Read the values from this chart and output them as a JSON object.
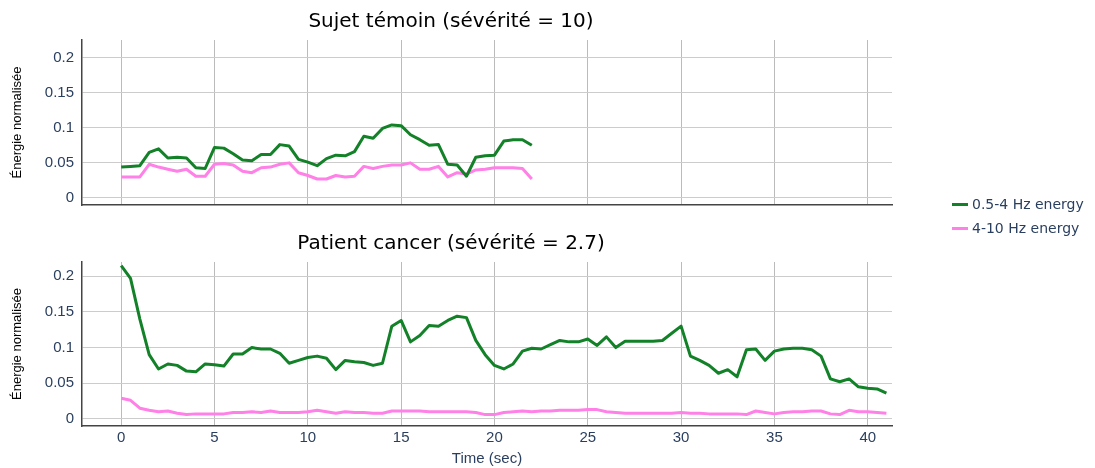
{
  "chart_data": [
    {
      "type": "line",
      "title": "Sujet témoin (sévérité = 10)",
      "ylabel": "Énergie normalisée",
      "xlim": [
        -2.1,
        41.3
      ],
      "xticks": [
        0,
        5,
        10,
        15,
        20,
        25,
        30,
        35,
        40
      ],
      "ylim": [
        -0.01,
        0.225
      ],
      "yticks": [
        0,
        0.05,
        0.1,
        0.15,
        0.2
      ],
      "grid": true,
      "legend": "right",
      "tick_labels": "y",
      "marker": "none",
      "line_style": "solid",
      "x": [
        0,
        0.5,
        1,
        1.5,
        2,
        2.5,
        3,
        3.5,
        4,
        4.5,
        5,
        5.5,
        6,
        6.5,
        7,
        7.5,
        8,
        8.5,
        9,
        9.5,
        10,
        10.5,
        11,
        11.5,
        12,
        12.5,
        13,
        13.5,
        14,
        14.5,
        15,
        15.5,
        16,
        16.5,
        17,
        17.5,
        18,
        18.5,
        19,
        19.5,
        20,
        20.5,
        21,
        21.5,
        22
      ],
      "series": [
        {
          "name": "0.5-4 Hz energy",
          "color": "#128128",
          "values": [
            0.044,
            0.045,
            0.046,
            0.065,
            0.07,
            0.057,
            0.058,
            0.057,
            0.043,
            0.042,
            0.072,
            0.071,
            0.063,
            0.054,
            0.053,
            0.062,
            0.062,
            0.076,
            0.074,
            0.055,
            0.051,
            0.046,
            0.056,
            0.061,
            0.06,
            0.066,
            0.088,
            0.085,
            0.099,
            0.104,
            0.103,
            0.09,
            0.083,
            0.075,
            0.076,
            0.048,
            0.047,
            0.031,
            0.058,
            0.06,
            0.061,
            0.081,
            0.083,
            0.083,
            0.075
          ]
        },
        {
          "name": "4-10 Hz energy",
          "color": "#ff80e6",
          "values": [
            0.03,
            0.03,
            0.03,
            0.048,
            0.044,
            0.041,
            0.038,
            0.041,
            0.031,
            0.031,
            0.048,
            0.049,
            0.047,
            0.038,
            0.036,
            0.043,
            0.044,
            0.048,
            0.05,
            0.036,
            0.032,
            0.027,
            0.027,
            0.032,
            0.03,
            0.031,
            0.045,
            0.042,
            0.045,
            0.047,
            0.047,
            0.05,
            0.041,
            0.041,
            0.045,
            0.03,
            0.036,
            0.034,
            0.04,
            0.041,
            0.043,
            0.043,
            0.043,
            0.042,
            0.027
          ]
        }
      ]
    },
    {
      "type": "line",
      "title": "Patient cancer (sévérité = 2.7)",
      "xlabel": "Time (sec)",
      "ylabel": "Énergie normalisée",
      "xlim": [
        -2.1,
        41.3
      ],
      "xticks": [
        0,
        5,
        10,
        15,
        20,
        25,
        30,
        35,
        40
      ],
      "ylim": [
        -0.01,
        0.22
      ],
      "yticks": [
        0,
        0.05,
        0.1,
        0.15,
        0.2
      ],
      "grid": true,
      "marker": "none",
      "line_style": "solid",
      "x": [
        0,
        0.5,
        1,
        1.5,
        2,
        2.5,
        3,
        3.5,
        4,
        4.5,
        5,
        5.5,
        6,
        6.5,
        7,
        7.5,
        8,
        8.5,
        9,
        9.5,
        10,
        10.5,
        11,
        11.5,
        12,
        12.5,
        13,
        13.5,
        14,
        14.5,
        15,
        15.5,
        16,
        16.5,
        17,
        17.5,
        18,
        18.5,
        19,
        19.5,
        20,
        20.5,
        21,
        21.5,
        22,
        22.5,
        23,
        23.5,
        24,
        24.5,
        25,
        25.5,
        26,
        26.5,
        27,
        27.5,
        28,
        28.5,
        29,
        29.5,
        30,
        30.5,
        31,
        31.5,
        32,
        32.5,
        33,
        33.5,
        34,
        34.5,
        35,
        35.5,
        36,
        36.5,
        37,
        37.5,
        38,
        38.5,
        39,
        39.5,
        40,
        40.5,
        41
      ],
      "series": [
        {
          "color": "#128128",
          "values": [
            0.215,
            0.197,
            0.14,
            0.09,
            0.07,
            0.077,
            0.075,
            0.067,
            0.066,
            0.077,
            0.076,
            0.074,
            0.091,
            0.091,
            0.1,
            0.098,
            0.098,
            0.092,
            0.078,
            0.082,
            0.086,
            0.088,
            0.085,
            0.069,
            0.082,
            0.08,
            0.079,
            0.075,
            0.078,
            0.13,
            0.138,
            0.108,
            0.117,
            0.131,
            0.13,
            0.138,
            0.144,
            0.142,
            0.11,
            0.09,
            0.075,
            0.07,
            0.077,
            0.095,
            0.099,
            0.098,
            0.104,
            0.11,
            0.108,
            0.108,
            0.112,
            0.103,
            0.115,
            0.1,
            0.109,
            0.109,
            0.109,
            0.109,
            0.11,
            0.12,
            0.13,
            0.088,
            0.082,
            0.075,
            0.064,
            0.069,
            0.059,
            0.097,
            0.098,
            0.082,
            0.095,
            0.098,
            0.099,
            0.099,
            0.097,
            0.088,
            0.056,
            0.052,
            0.056,
            0.045,
            0.043,
            0.042,
            0.036
          ]
        },
        {
          "color": "#ff80e6",
          "values": [
            0.029,
            0.026,
            0.015,
            0.012,
            0.01,
            0.011,
            0.008,
            0.006,
            0.007,
            0.007,
            0.007,
            0.007,
            0.009,
            0.009,
            0.01,
            0.009,
            0.011,
            0.009,
            0.009,
            0.009,
            0.01,
            0.012,
            0.01,
            0.008,
            0.01,
            0.009,
            0.009,
            0.008,
            0.008,
            0.011,
            0.011,
            0.011,
            0.011,
            0.01,
            0.01,
            0.01,
            0.01,
            0.01,
            0.009,
            0.006,
            0.006,
            0.009,
            0.01,
            0.011,
            0.01,
            0.011,
            0.011,
            0.012,
            0.012,
            0.012,
            0.013,
            0.013,
            0.01,
            0.009,
            0.008,
            0.008,
            0.008,
            0.008,
            0.008,
            0.008,
            0.009,
            0.008,
            0.008,
            0.007,
            0.007,
            0.007,
            0.007,
            0.006,
            0.011,
            0.009,
            0.007,
            0.009,
            0.01,
            0.01,
            0.011,
            0.011,
            0.007,
            0.006,
            0.012,
            0.01,
            0.01,
            0.009,
            0.008
          ]
        }
      ]
    }
  ]
}
